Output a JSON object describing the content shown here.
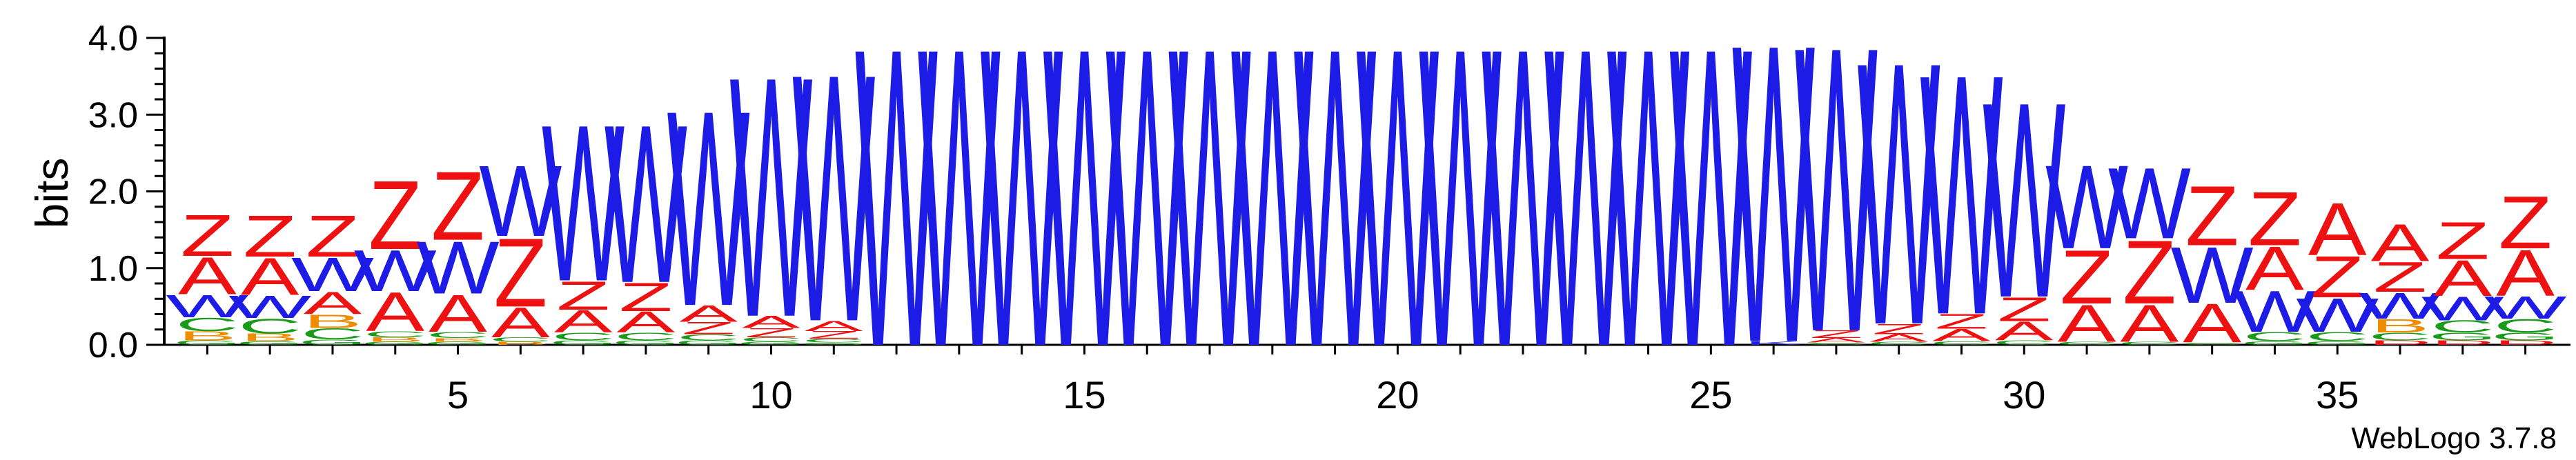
{
  "chart_data": {
    "type": "sequence_logo",
    "title": "",
    "xlabel": "",
    "ylabel": "bits",
    "ylim": [
      0,
      4.0
    ],
    "y_ticks": [
      "0.0",
      "1.0",
      "2.0",
      "3.0",
      "4.0"
    ],
    "x_ticks": [
      5,
      10,
      15,
      20,
      25,
      30,
      35
    ],
    "grid": false,
    "legend": "none",
    "colors": {
      "W": "#1c1ce6",
      "Z": "#ee1111",
      "A": "#ee1111",
      "C": "#1a9a1a",
      "B": "#f08c00",
      "G": "#1a9a1a",
      "D": "#ee1111",
      "K": "#1c1ce6"
    },
    "positions": [
      {
        "pos": 1,
        "letters": [
          [
            "Z",
            0.55
          ],
          [
            "A",
            0.5
          ],
          [
            "W",
            0.3
          ],
          [
            "C",
            0.18
          ],
          [
            "B",
            0.12
          ],
          [
            "G",
            0.06
          ]
        ]
      },
      {
        "pos": 2,
        "letters": [
          [
            "Z",
            0.55
          ],
          [
            "A",
            0.5
          ],
          [
            "W",
            0.3
          ],
          [
            "C",
            0.2
          ],
          [
            "B",
            0.1
          ],
          [
            "G",
            0.05
          ]
        ]
      },
      {
        "pos": 3,
        "letters": [
          [
            "Z",
            0.55
          ],
          [
            "W",
            0.45
          ],
          [
            "A",
            0.3
          ],
          [
            "B",
            0.18
          ],
          [
            "C",
            0.15
          ],
          [
            "G",
            0.07
          ]
        ]
      },
      {
        "pos": 4,
        "letters": [
          [
            "Z",
            0.92
          ],
          [
            "W",
            0.55
          ],
          [
            "A",
            0.52
          ],
          [
            "C",
            0.08
          ],
          [
            "B",
            0.06
          ],
          [
            "G",
            0.04
          ]
        ]
      },
      {
        "pos": 5,
        "letters": [
          [
            "Z",
            0.92
          ],
          [
            "W",
            0.7
          ],
          [
            "A",
            0.5
          ],
          [
            "C",
            0.08
          ],
          [
            "B",
            0.05
          ],
          [
            "G",
            0.04
          ]
        ]
      },
      {
        "pos": 6,
        "letters": [
          [
            "W",
            0.95
          ],
          [
            "Z",
            0.92
          ],
          [
            "A",
            0.4
          ],
          [
            "C",
            0.06
          ],
          [
            "B",
            0.04
          ]
        ]
      },
      {
        "pos": 7,
        "letters": [
          [
            "W",
            2.1
          ],
          [
            "Z",
            0.38
          ],
          [
            "A",
            0.3
          ],
          [
            "C",
            0.1
          ],
          [
            "G",
            0.06
          ]
        ]
      },
      {
        "pos": 8,
        "letters": [
          [
            "W",
            2.12
          ],
          [
            "Z",
            0.38
          ],
          [
            "A",
            0.28
          ],
          [
            "C",
            0.1
          ],
          [
            "G",
            0.06
          ]
        ]
      },
      {
        "pos": 9,
        "letters": [
          [
            "W",
            2.62
          ],
          [
            "A",
            0.22
          ],
          [
            "Z",
            0.16
          ],
          [
            "C",
            0.08
          ],
          [
            "G",
            0.06
          ]
        ]
      },
      {
        "pos": 10,
        "letters": [
          [
            "W",
            3.22
          ],
          [
            "A",
            0.16
          ],
          [
            "Z",
            0.12
          ],
          [
            "C",
            0.06
          ],
          [
            "G",
            0.04
          ]
        ]
      },
      {
        "pos": 11,
        "letters": [
          [
            "W",
            3.32
          ],
          [
            "A",
            0.14
          ],
          [
            "Z",
            0.1
          ],
          [
            "C",
            0.05
          ],
          [
            "G",
            0.03
          ]
        ]
      },
      {
        "pos": 12,
        "letters": [
          [
            "W",
            4.0
          ]
        ]
      },
      {
        "pos": 13,
        "letters": [
          [
            "W",
            4.0
          ]
        ]
      },
      {
        "pos": 14,
        "letters": [
          [
            "W",
            4.0
          ]
        ]
      },
      {
        "pos": 15,
        "letters": [
          [
            "W",
            4.0
          ]
        ]
      },
      {
        "pos": 16,
        "letters": [
          [
            "W",
            4.0
          ]
        ]
      },
      {
        "pos": 17,
        "letters": [
          [
            "W",
            4.0
          ]
        ]
      },
      {
        "pos": 18,
        "letters": [
          [
            "W",
            4.0
          ]
        ]
      },
      {
        "pos": 19,
        "letters": [
          [
            "W",
            4.0
          ]
        ]
      },
      {
        "pos": 20,
        "letters": [
          [
            "W",
            4.0
          ]
        ]
      },
      {
        "pos": 21,
        "letters": [
          [
            "W",
            4.0
          ]
        ]
      },
      {
        "pos": 22,
        "letters": [
          [
            "W",
            4.0
          ]
        ]
      },
      {
        "pos": 23,
        "letters": [
          [
            "W",
            4.0
          ]
        ]
      },
      {
        "pos": 24,
        "letters": [
          [
            "W",
            4.0
          ]
        ]
      },
      {
        "pos": 25,
        "letters": [
          [
            "W",
            4.0
          ]
        ]
      },
      {
        "pos": 26,
        "letters": [
          [
            "W",
            4.0
          ],
          [
            "K",
            0.05
          ]
        ]
      },
      {
        "pos": 27,
        "letters": [
          [
            "W",
            3.82
          ],
          [
            "Z",
            0.1
          ],
          [
            "A",
            0.06
          ],
          [
            "C",
            0.03
          ]
        ]
      },
      {
        "pos": 28,
        "letters": [
          [
            "W",
            3.52
          ],
          [
            "Z",
            0.14
          ],
          [
            "A",
            0.1
          ],
          [
            "C",
            0.04
          ]
        ]
      },
      {
        "pos": 29,
        "letters": [
          [
            "W",
            3.22
          ],
          [
            "Z",
            0.2
          ],
          [
            "A",
            0.16
          ],
          [
            "C",
            0.05
          ]
        ]
      },
      {
        "pos": 30,
        "letters": [
          [
            "W",
            2.62
          ],
          [
            "Z",
            0.32
          ],
          [
            "A",
            0.25
          ],
          [
            "C",
            0.06
          ]
        ]
      },
      {
        "pos": 31,
        "letters": [
          [
            "W",
            1.12
          ],
          [
            "Z",
            0.72
          ],
          [
            "A",
            0.5
          ],
          [
            "C",
            0.04
          ]
        ]
      },
      {
        "pos": 32,
        "letters": [
          [
            "W",
            0.95
          ],
          [
            "Z",
            0.85
          ],
          [
            "A",
            0.5
          ],
          [
            "C",
            0.04
          ]
        ]
      },
      {
        "pos": 33,
        "letters": [
          [
            "Z",
            0.8
          ],
          [
            "W",
            0.75
          ],
          [
            "A",
            0.52
          ],
          [
            "C",
            0.03
          ]
        ]
      },
      {
        "pos": 34,
        "letters": [
          [
            "Z",
            0.72
          ],
          [
            "A",
            0.58
          ],
          [
            "W",
            0.55
          ],
          [
            "C",
            0.12
          ],
          [
            "G",
            0.05
          ]
        ]
      },
      {
        "pos": 35,
        "letters": [
          [
            "A",
            0.7
          ],
          [
            "Z",
            0.55
          ],
          [
            "W",
            0.45
          ],
          [
            "C",
            0.12
          ],
          [
            "G",
            0.05
          ]
        ]
      },
      {
        "pos": 36,
        "letters": [
          [
            "A",
            0.5
          ],
          [
            "Z",
            0.4
          ],
          [
            "W",
            0.35
          ],
          [
            "B",
            0.18
          ],
          [
            "C",
            0.1
          ],
          [
            "D",
            0.06
          ]
        ]
      },
      {
        "pos": 37,
        "letters": [
          [
            "A",
            0.48
          ],
          [
            "Z",
            0.5
          ],
          [
            "W",
            0.32
          ],
          [
            "C",
            0.16
          ],
          [
            "G",
            0.1
          ],
          [
            "D",
            0.06
          ]
        ]
      },
      {
        "pos": 38,
        "letters": [
          [
            "Z",
            0.7
          ],
          [
            "A",
            0.62
          ],
          [
            "W",
            0.3
          ],
          [
            "C",
            0.18
          ],
          [
            "G",
            0.1
          ],
          [
            "D",
            0.06
          ]
        ]
      }
    ]
  },
  "footer": {
    "version_label": "WebLogo 3.7.8"
  }
}
